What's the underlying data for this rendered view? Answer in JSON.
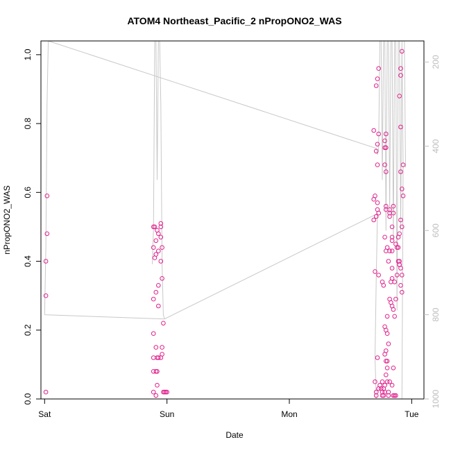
{
  "chart_data": {
    "type": "scatter",
    "title": "ATOM4 Northeast_Pacific_2 nPropONO2_WAS",
    "xlabel": "Date",
    "ylabel": "nPropONO2_WAS",
    "x_ticks": [
      "Sat",
      "Sun",
      "Mon",
      "Tue"
    ],
    "y_ticks": [
      "0.0",
      "0.2",
      "0.4",
      "0.6",
      "0.8",
      "1.0"
    ],
    "y_right_ticks": [
      "200",
      "400",
      "600",
      "800",
      "1000"
    ],
    "ylim": [
      0,
      1.04
    ],
    "y_right_range": [
      1000,
      150
    ],
    "x_range_days": [
      -0.03,
      3.1
    ],
    "colors": {
      "points": "#e0208c",
      "altitude_line": "#c8c8c8"
    },
    "series": [
      {
        "values": [
          [
            0.02,
            0.59
          ],
          [
            0.02,
            0.48
          ],
          [
            0.01,
            0.4
          ],
          [
            0.01,
            0.3
          ],
          [
            0.01,
            0.02
          ],
          [
            0.89,
            0.5
          ],
          [
            0.9,
            0.5
          ],
          [
            0.92,
            0.49
          ],
          [
            0.93,
            0.48
          ],
          [
            0.95,
            0.51
          ],
          [
            0.95,
            0.5
          ],
          [
            0.91,
            0.46
          ],
          [
            0.89,
            0.44
          ],
          [
            0.95,
            0.47
          ],
          [
            0.96,
            0.44
          ],
          [
            0.93,
            0.43
          ],
          [
            0.9,
            0.41
          ],
          [
            0.91,
            0.42
          ],
          [
            0.95,
            0.4
          ],
          [
            0.96,
            0.35
          ],
          [
            0.93,
            0.33
          ],
          [
            0.91,
            0.31
          ],
          [
            0.89,
            0.29
          ],
          [
            0.93,
            0.27
          ],
          [
            0.97,
            0.22
          ],
          [
            0.89,
            0.19
          ],
          [
            0.91,
            0.15
          ],
          [
            0.96,
            0.15
          ],
          [
            0.96,
            0.13
          ],
          [
            0.92,
            0.12
          ],
          [
            0.93,
            0.12
          ],
          [
            0.89,
            0.12
          ],
          [
            0.95,
            0.12
          ],
          [
            0.89,
            0.08
          ],
          [
            0.92,
            0.08
          ],
          [
            0.91,
            0.08
          ],
          [
            0.92,
            0.04
          ],
          [
            0.89,
            0.02
          ],
          [
            0.91,
            0.01
          ],
          [
            0.97,
            0.02
          ],
          [
            0.98,
            0.02
          ],
          [
            0.99,
            0.02
          ],
          [
            1.0,
            0.02
          ],
          [
            2.73,
            0.96
          ],
          [
            2.72,
            0.93
          ],
          [
            2.71,
            0.91
          ],
          [
            2.69,
            0.78
          ],
          [
            2.73,
            0.77
          ],
          [
            2.72,
            0.74
          ],
          [
            2.71,
            0.72
          ],
          [
            2.72,
            0.68
          ],
          [
            2.7,
            0.59
          ],
          [
            2.72,
            0.57
          ],
          [
            2.69,
            0.58
          ],
          [
            2.72,
            0.55
          ],
          [
            2.73,
            0.54
          ],
          [
            2.71,
            0.53
          ],
          [
            2.69,
            0.52
          ],
          [
            2.7,
            0.37
          ],
          [
            2.73,
            0.36
          ],
          [
            2.79,
            0.77
          ],
          [
            2.78,
            0.75
          ],
          [
            2.78,
            0.73
          ],
          [
            2.79,
            0.73
          ],
          [
            2.78,
            0.68
          ],
          [
            2.79,
            0.66
          ],
          [
            2.79,
            0.56
          ],
          [
            2.79,
            0.55
          ],
          [
            2.78,
            0.47
          ],
          [
            2.8,
            0.44
          ],
          [
            2.79,
            0.43
          ],
          [
            2.81,
            0.4
          ],
          [
            2.76,
            0.34
          ],
          [
            2.77,
            0.33
          ],
          [
            2.82,
            0.55
          ],
          [
            2.82,
            0.54
          ],
          [
            2.82,
            0.53
          ],
          [
            2.84,
            0.5
          ],
          [
            2.84,
            0.47
          ],
          [
            2.84,
            0.46
          ],
          [
            2.82,
            0.43
          ],
          [
            2.84,
            0.43
          ],
          [
            2.85,
            0.56
          ],
          [
            2.85,
            0.54
          ],
          [
            2.84,
            0.38
          ],
          [
            2.84,
            0.35
          ],
          [
            2.83,
            0.34
          ],
          [
            2.82,
            0.29
          ],
          [
            2.83,
            0.28
          ],
          [
            2.84,
            0.27
          ],
          [
            2.89,
            0.47
          ],
          [
            2.87,
            0.45
          ],
          [
            2.88,
            0.44
          ],
          [
            2.89,
            0.4
          ],
          [
            2.9,
            0.39
          ],
          [
            2.88,
            0.36
          ],
          [
            2.86,
            0.34
          ],
          [
            2.87,
            0.29
          ],
          [
            2.85,
            0.26
          ],
          [
            2.86,
            0.24
          ],
          [
            2.9,
            0.88
          ],
          [
            2.91,
            0.94
          ],
          [
            2.92,
            1.01
          ],
          [
            2.91,
            0.96
          ],
          [
            2.91,
            0.79
          ],
          [
            2.91,
            0.66
          ],
          [
            2.92,
            0.61
          ],
          [
            2.93,
            0.59
          ],
          [
            2.91,
            0.52
          ],
          [
            2.92,
            0.5
          ],
          [
            2.9,
            0.48
          ],
          [
            2.89,
            0.44
          ],
          [
            2.9,
            0.4
          ],
          [
            2.9,
            0.39
          ],
          [
            2.91,
            0.38
          ],
          [
            2.92,
            0.36
          ],
          [
            2.91,
            0.33
          ],
          [
            2.92,
            0.31
          ],
          [
            2.93,
            0.68
          ],
          [
            2.8,
            0.24
          ],
          [
            2.78,
            0.21
          ],
          [
            2.79,
            0.2
          ],
          [
            2.8,
            0.19
          ],
          [
            2.81,
            0.16
          ],
          [
            2.79,
            0.14
          ],
          [
            2.78,
            0.13
          ],
          [
            2.8,
            0.11
          ],
          [
            2.8,
            0.09
          ],
          [
            2.79,
            0.07
          ],
          [
            2.8,
            0.05
          ],
          [
            2.81,
            0.01
          ],
          [
            2.76,
            0.02
          ],
          [
            2.75,
            0.03
          ],
          [
            2.74,
            0.04
          ],
          [
            2.73,
            0.03
          ],
          [
            2.76,
            0.05
          ],
          [
            2.78,
            0.02
          ],
          [
            2.72,
            0.12
          ],
          [
            2.7,
            0.05
          ],
          [
            2.71,
            0.02
          ],
          [
            2.71,
            0.01
          ],
          [
            2.82,
            0.05
          ],
          [
            2.84,
            0.04
          ],
          [
            2.85,
            0.09
          ],
          [
            2.85,
            0.01
          ],
          [
            2.86,
            0.01
          ],
          [
            2.87,
            0.01
          ],
          [
            2.78,
            0.04
          ],
          [
            2.79,
            0.11
          ],
          [
            2.76,
            0.01
          ],
          [
            2.77,
            0.01
          ],
          [
            2.81,
            0.02
          ],
          [
            2.77,
            0.03
          ]
        ]
      }
    ],
    "altitude_line": [
      [
        0.0,
        800
      ],
      [
        0.01,
        640
      ],
      [
        0.02,
        300
      ],
      [
        0.03,
        150
      ],
      [
        2.71,
        405
      ],
      [
        2.72,
        420
      ],
      [
        2.73,
        405
      ],
      [
        2.74,
        150
      ],
      [
        2.75,
        150
      ],
      [
        2.76,
        480
      ],
      [
        2.77,
        150
      ],
      [
        2.78,
        150
      ],
      [
        2.79,
        600
      ],
      [
        2.8,
        150
      ],
      [
        2.81,
        150
      ],
      [
        2.82,
        560
      ],
      [
        2.83,
        150
      ],
      [
        2.84,
        150
      ],
      [
        2.85,
        620
      ],
      [
        2.86,
        150
      ],
      [
        2.87,
        150
      ],
      [
        2.88,
        790
      ],
      [
        2.89,
        150
      ],
      [
        2.9,
        150
      ],
      [
        2.91,
        600
      ],
      [
        2.92,
        150
      ],
      [
        2.93,
        450
      ],
      [
        2.92,
        1000
      ],
      [
        2.91,
        1000
      ],
      [
        2.85,
        1000
      ],
      [
        2.82,
        1000
      ],
      [
        2.78,
        1000
      ],
      [
        2.74,
        1000
      ],
      [
        2.71,
        1000
      ],
      [
        2.7,
        900
      ],
      [
        2.71,
        720
      ],
      [
        2.72,
        560
      ],
      [
        0.98,
        810
      ],
      [
        0.0,
        800
      ],
      null,
      [
        0.88,
        680
      ],
      [
        0.89,
        600
      ],
      [
        0.9,
        150
      ],
      [
        0.91,
        150
      ],
      [
        0.92,
        480
      ],
      [
        0.93,
        150
      ],
      [
        0.94,
        150
      ],
      [
        0.95,
        300
      ],
      [
        0.96,
        680
      ],
      [
        0.97,
        800
      ],
      [
        0.98,
        810
      ],
      null,
      [
        2.93,
        150
      ],
      [
        2.94,
        150
      ],
      [
        2.95,
        450
      ]
    ]
  }
}
